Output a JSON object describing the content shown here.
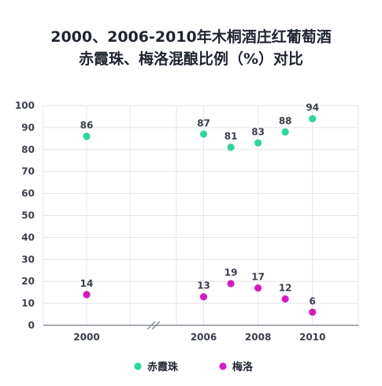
{
  "chart_data": {
    "type": "scatter",
    "title_line1": "2000、2006-2010年木桐酒庄红葡萄酒",
    "title_line2": "赤霞珠、梅洛混酿比例（%）对比",
    "xlabel": "",
    "ylabel": "",
    "ylim": [
      0,
      100
    ],
    "y_ticks": [
      "0",
      "10",
      "20",
      "30",
      "40",
      "50",
      "60",
      "70",
      "80",
      "90",
      "100"
    ],
    "x_ticks": [
      "2000",
      "2006",
      "2008",
      "2010"
    ],
    "x_tick_values": [
      2000,
      2006,
      2008,
      2010
    ],
    "x_axis_segments": [
      [
        1998,
        2002
      ],
      [
        2005,
        2010.5
      ]
    ],
    "grid": true,
    "legend_position": "bottom",
    "series": [
      {
        "name": "赤霞珠",
        "color": "#2fd69b",
        "x": [
          2000,
          2006,
          2007,
          2008,
          2009,
          2010
        ],
        "values": [
          86,
          87,
          81,
          83,
          88,
          94
        ],
        "labels": [
          "86",
          "87",
          "81",
          "83",
          "88",
          "94"
        ]
      },
      {
        "name": "梅洛",
        "color": "#d61cc0",
        "x": [
          2000,
          2006,
          2007,
          2008,
          2009,
          2010
        ],
        "values": [
          14,
          13,
          19,
          17,
          12,
          6
        ],
        "labels": [
          "14",
          "13",
          "19",
          "17",
          "12",
          "6"
        ]
      }
    ]
  }
}
